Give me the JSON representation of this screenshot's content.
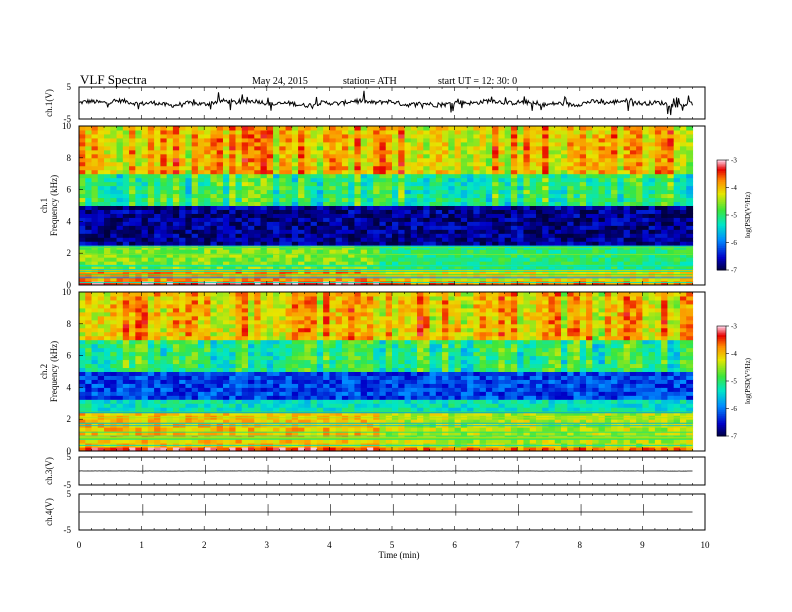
{
  "header": {
    "title": "VLF  Spectra",
    "date": "May 24, 2015",
    "station": "station= ATH",
    "start": "start  UT =   12: 30: 0"
  },
  "chart_data": [
    {
      "type": "line",
      "name": "ch1-waveform",
      "ylabel": "ch.1(V)",
      "ylim": [
        -5,
        5
      ],
      "yticks": [
        "5",
        "-5"
      ],
      "baseline": 0,
      "noise_amplitude": 1.5,
      "xlim": [
        0,
        10
      ],
      "data_end": 9.8
    },
    {
      "type": "heatmap",
      "name": "ch1-spectrogram",
      "ylabel": "ch.1\nFrequency  (kHz)",
      "ylim": [
        0,
        10
      ],
      "yticks": [
        "0",
        "2",
        "4",
        "6",
        "8",
        "10"
      ],
      "xlim": [
        0,
        10
      ],
      "data_end": 9.8,
      "colorbar": {
        "label": "log(PSD(V²/Hz)",
        "range": [
          -7,
          -3
        ],
        "ticks": [
          "-3",
          "-4",
          "-5",
          "-6",
          "-7"
        ]
      },
      "bands": [
        {
          "from": 0,
          "to": 0.3,
          "level": -3.3
        },
        {
          "from": 0.3,
          "to": 1.0,
          "level": -3.8
        },
        {
          "from": 1.0,
          "to": 2.5,
          "level": -4.6
        },
        {
          "from": 2.5,
          "to": 5.0,
          "level": -6.7
        },
        {
          "from": 5.0,
          "to": 7.0,
          "level": -5.0
        },
        {
          "from": 7.0,
          "to": 10.0,
          "level": -4.0
        }
      ],
      "transition_time": 4.7
    },
    {
      "type": "heatmap",
      "name": "ch2-spectrogram",
      "ylabel": "ch.2\nFrequency  (kHz)",
      "ylim": [
        0,
        10
      ],
      "yticks": [
        "0",
        "2",
        "4",
        "6",
        "8",
        "10"
      ],
      "xlim": [
        0,
        10
      ],
      "data_end": 9.8,
      "colorbar": {
        "label": "log(PSD(V²/Hz)",
        "range": [
          -7,
          -3
        ],
        "ticks": [
          "-3",
          "-4",
          "-5",
          "-6",
          "-7"
        ]
      },
      "bands": [
        {
          "from": 0,
          "to": 0.3,
          "level": -3.3
        },
        {
          "from": 0.3,
          "to": 2.5,
          "level": -4.0
        },
        {
          "from": 2.5,
          "to": 3.2,
          "level": -5.3
        },
        {
          "from": 3.2,
          "to": 5.0,
          "level": -6.2
        },
        {
          "from": 5.0,
          "to": 7.0,
          "level": -5.0
        },
        {
          "from": 7.0,
          "to": 10.0,
          "level": -4.0
        }
      ],
      "transition_time": 4.7
    },
    {
      "type": "line",
      "name": "ch3-waveform",
      "ylabel": "ch.3(V)",
      "ylim": [
        -5,
        5
      ],
      "yticks": [
        "5",
        "-5"
      ],
      "baseline": 0,
      "noise_amplitude": 0.05,
      "xlim": [
        0,
        10
      ],
      "data_end": 9.8
    },
    {
      "type": "line",
      "name": "ch4-waveform",
      "ylabel": "ch.4(V)",
      "ylim": [
        -5,
        5
      ],
      "yticks": [
        "5",
        "-5"
      ],
      "baseline": 0,
      "noise_amplitude": 0.0,
      "xlim": [
        0,
        10
      ],
      "data_end": 9.8
    }
  ],
  "xaxis": {
    "label": "Time  (min)",
    "ticks": [
      "0",
      "1",
      "2",
      "3",
      "4",
      "5",
      "6",
      "7",
      "8",
      "9",
      "10"
    ]
  }
}
